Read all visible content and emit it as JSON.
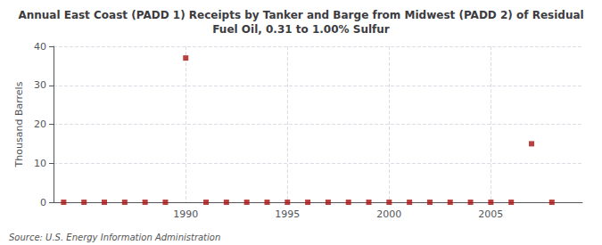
{
  "chart_data": {
    "type": "scatter",
    "title": "Annual East Coast (PADD 1) Receipts by Tanker and Barge from Midwest (PADD 2) of Residual\nFuel Oil, 0.31 to 1.00% Sulfur",
    "ylabel": "Thousand Barrels",
    "annotation": "Source: U.S. Energy Information Administration",
    "x": [
      1984,
      1985,
      1986,
      1987,
      1988,
      1989,
      1990,
      1991,
      1992,
      1993,
      1994,
      1995,
      1996,
      1997,
      1998,
      1999,
      2000,
      2001,
      2002,
      2003,
      2004,
      2005,
      2006,
      2007,
      2008
    ],
    "values": [
      0,
      0,
      0,
      0,
      0,
      0,
      37,
      0,
      0,
      0,
      0,
      0,
      0,
      0,
      0,
      0,
      0,
      0,
      0,
      0,
      0,
      0,
      0,
      15,
      0
    ],
    "color": "#aa1111",
    "marker": "square",
    "xlim": [
      1983.5,
      2009.5
    ],
    "xticks": [
      1990,
      1995,
      2000,
      2005
    ],
    "ylim": [
      0,
      40
    ],
    "yticks": [
      0,
      10,
      20,
      30,
      40
    ],
    "grid": true
  }
}
